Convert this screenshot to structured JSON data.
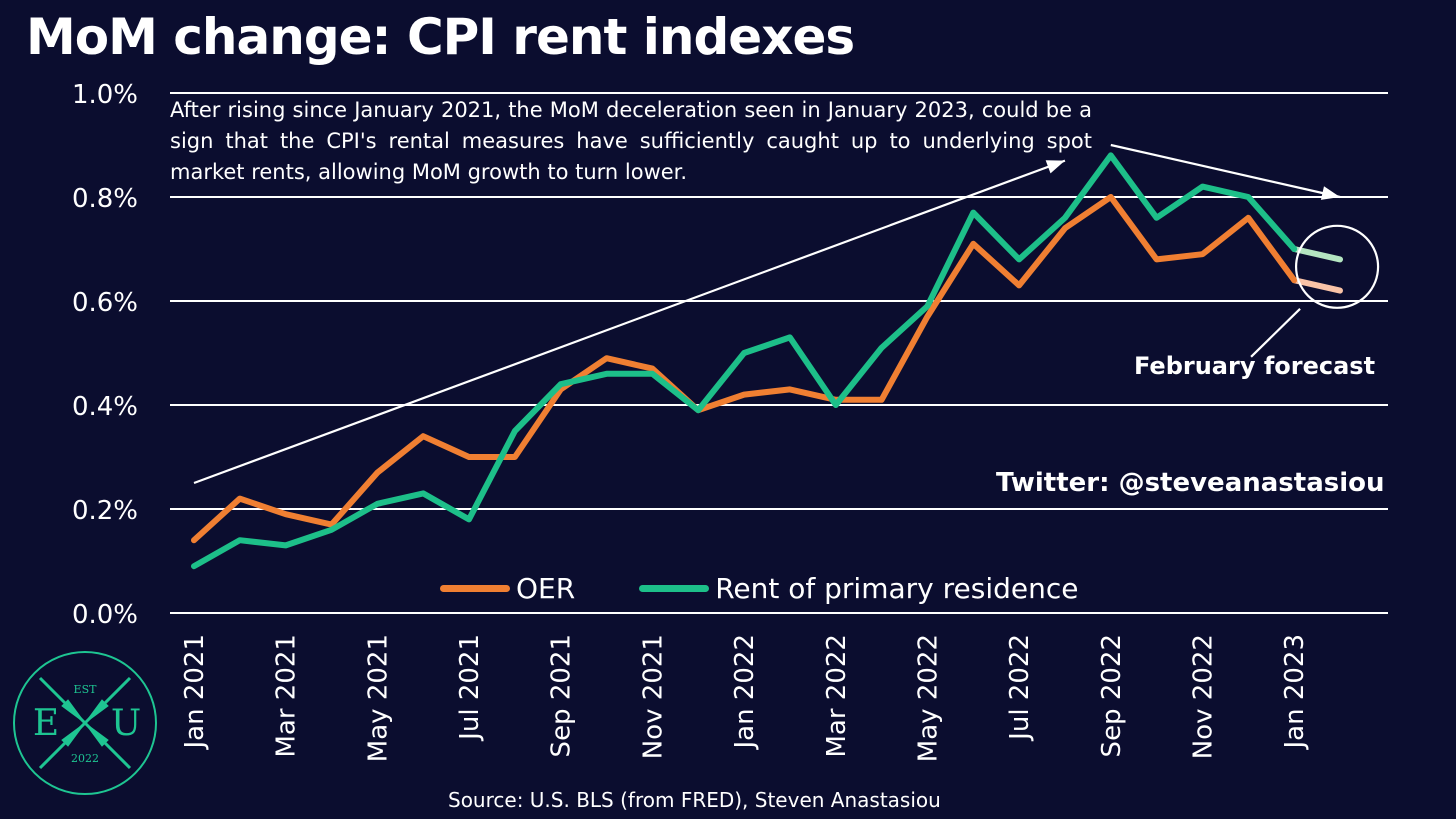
{
  "title": "MoM change: CPI rent indexes",
  "annotation": "After rising since January 2021, the MoM deceleration seen in January 2023, could be a sign that the CPI's rental measures have sufficiently caught up to underlying spot market rents, allowing MoM growth to turn lower.",
  "forecast_label": "February forecast",
  "twitter_handle": "Twitter: @steveanastasiou",
  "source": "Source: U.S. BLS (from FRED), Steven Anastasiou",
  "logo": {
    "top": "EST",
    "left": "E",
    "right": "U",
    "bottom": "2022",
    "color": "#1ec592"
  },
  "colors": {
    "background": "#0b0d2f",
    "oer": "#f07f32",
    "rent": "#1dbf89",
    "oer_forecast": "#f9c3a7",
    "rent_forecast": "#b4e5c1"
  },
  "chart_data": {
    "type": "line",
    "title": "MoM change: CPI rent indexes",
    "ylim": [
      0.0,
      1.0
    ],
    "y_ticks": [
      "0.0%",
      "0.2%",
      "0.4%",
      "0.6%",
      "0.8%",
      "1.0%"
    ],
    "y_tick_values": [
      0.0,
      0.2,
      0.4,
      0.6,
      0.8,
      1.0
    ],
    "grid": true,
    "legend_position": "bottom-center",
    "x": [
      "Jan 2021",
      "Feb 2021",
      "Mar 2021",
      "Apr 2021",
      "May 2021",
      "Jun 2021",
      "Jul 2021",
      "Aug 2021",
      "Sep 2021",
      "Oct 2021",
      "Nov 2021",
      "Dec 2021",
      "Jan 2022",
      "Feb 2022",
      "Mar 2022",
      "Apr 2022",
      "May 2022",
      "Jun 2022",
      "Jul 2022",
      "Aug 2022",
      "Sep 2022",
      "Oct 2022",
      "Nov 2022",
      "Dec 2022",
      "Jan 2023",
      "Feb 2023"
    ],
    "x_tick_labels": [
      "Jan 2021",
      "Mar 2021",
      "May 2021",
      "Jul 2021",
      "Sep 2021",
      "Nov 2021",
      "Jan 2022",
      "Mar 2022",
      "May 2022",
      "Jul 2022",
      "Sep 2022",
      "Nov 2022",
      "Jan 2023"
    ],
    "series": [
      {
        "name": "OER",
        "color": "#f07f32",
        "values": [
          0.14,
          0.22,
          0.19,
          0.17,
          0.27,
          0.34,
          0.3,
          0.3,
          0.43,
          0.49,
          0.47,
          0.39,
          0.42,
          0.43,
          0.41,
          0.41,
          0.57,
          0.71,
          0.63,
          0.74,
          0.8,
          0.68,
          0.69,
          0.76,
          0.64,
          null
        ],
        "forecast_color": "#f9c3a7",
        "forecast_values": [
          null,
          null,
          null,
          null,
          null,
          null,
          null,
          null,
          null,
          null,
          null,
          null,
          null,
          null,
          null,
          null,
          null,
          null,
          null,
          null,
          null,
          null,
          null,
          null,
          0.64,
          0.62
        ]
      },
      {
        "name": "Rent of primary residence",
        "color": "#1dbf89",
        "values": [
          0.09,
          0.14,
          0.13,
          0.16,
          0.21,
          0.23,
          0.18,
          0.35,
          0.44,
          0.46,
          0.46,
          0.39,
          0.5,
          0.53,
          0.4,
          0.51,
          0.59,
          0.77,
          0.68,
          0.76,
          0.88,
          0.76,
          0.82,
          0.8,
          0.7,
          null
        ],
        "forecast_color": "#b4e5c1",
        "forecast_values": [
          null,
          null,
          null,
          null,
          null,
          null,
          null,
          null,
          null,
          null,
          null,
          null,
          null,
          null,
          null,
          null,
          null,
          null,
          null,
          null,
          null,
          null,
          null,
          null,
          0.7,
          0.68
        ]
      }
    ],
    "annotations": [
      "After rising since January 2021, the MoM deceleration seen in January 2023, could be a sign that the CPI's rental measures have sufficiently caught up to underlying spot market rents, allowing MoM growth to turn lower.",
      "February forecast"
    ],
    "trend_arrows": [
      {
        "from_x": "Jan 2021",
        "from_y": 0.25,
        "to_x": "Aug 2022",
        "to_y": 0.87
      },
      {
        "from_x": "Sep 2022",
        "from_y": 0.9,
        "to_x": "Feb 2023",
        "to_y": 0.8
      }
    ]
  }
}
